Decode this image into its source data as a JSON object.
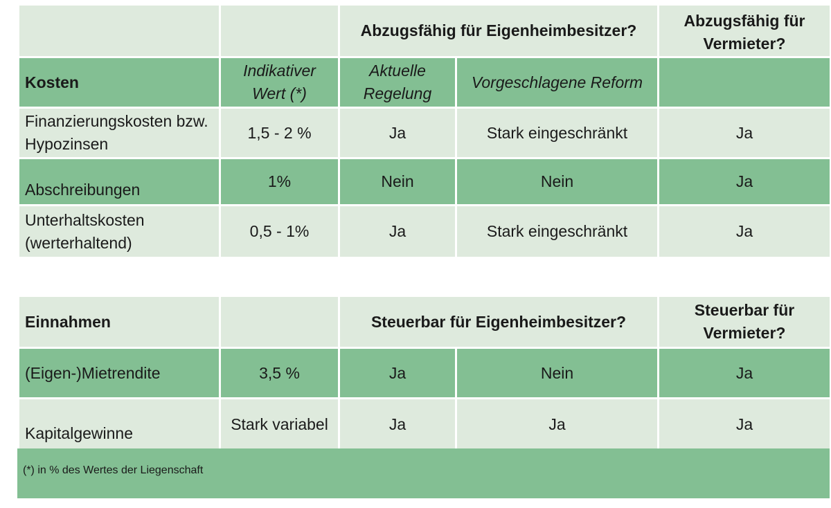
{
  "costs_table": {
    "top_header": {
      "owner_group": "Abzugsfähig für Eigenheimbesitzer?",
      "landlord": "Abzugsfähig für Vermieter?"
    },
    "sub_header": {
      "label": "Kosten",
      "indicative_value": "Indikativer Wert (*)",
      "current_rule": "Aktuelle Regelung",
      "proposed_reform": "Vorgeschlagene Reform"
    },
    "rows": [
      {
        "label": "Finanzierungskosten bzw. Hypozinsen",
        "value": "1,5 - 2 %",
        "current": "Ja",
        "reform": "Stark eingeschränkt",
        "landlord": "Ja"
      },
      {
        "label": "Abschreibungen",
        "value": "1%",
        "current": "Nein",
        "reform": "Nein",
        "landlord": "Ja"
      },
      {
        "label": "Unterhaltskosten (werterhaltend)",
        "value": "0,5 - 1%",
        "current": "Ja",
        "reform": "Stark eingeschränkt",
        "landlord": "Ja"
      }
    ]
  },
  "income_table": {
    "header": {
      "label": "Einnahmen",
      "owner_group": "Steuerbar für Eigenheimbesitzer?",
      "landlord": "Steuerbar für Vermieter?"
    },
    "rows": [
      {
        "label": "(Eigen-)Mietrendite",
        "value": "3,5 %",
        "current": "Ja",
        "reform": "Nein",
        "landlord": "Ja"
      },
      {
        "label": "Kapitalgewinne",
        "value": "Stark variabel",
        "current": "Ja",
        "reform": "Ja",
        "landlord": "Ja"
      }
    ]
  },
  "footnote": "(*) in % des Wertes der Liegenschaft"
}
